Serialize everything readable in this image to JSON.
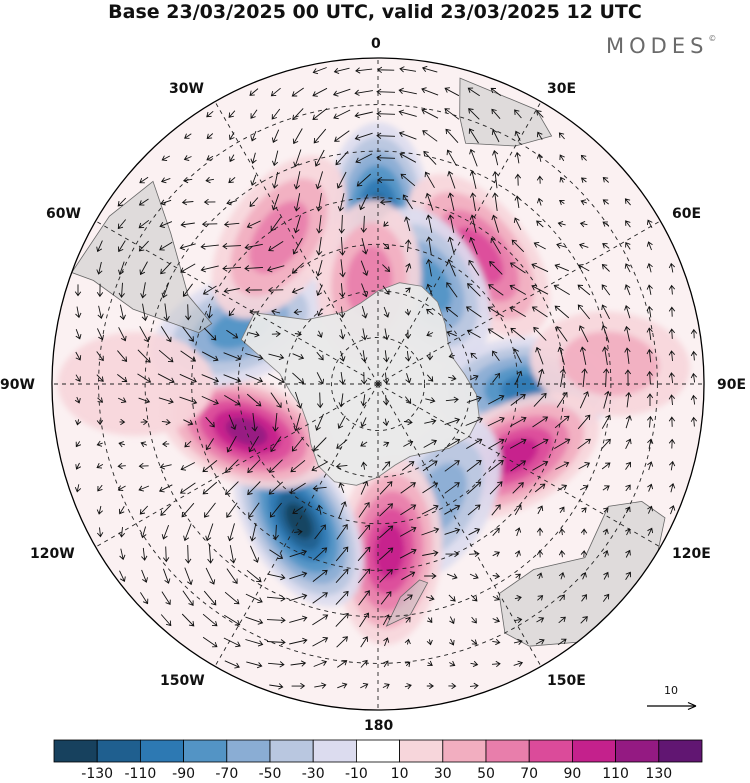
{
  "title": "Base 23/03/2025 00 UTC, valid 23/03/2025 12 UTC",
  "brand": "MODES",
  "brand_mark": "©",
  "longitude_labels": {
    "lon_0": "0",
    "lon_30e": "30E",
    "lon_60e": "60E",
    "lon_90e": "90E",
    "lon_120e": "120E",
    "lon_150e": "150E",
    "lon_180": "180",
    "lon_150w": "150W",
    "lon_120w": "120W",
    "lon_90w": "90W",
    "lon_60w": "60W",
    "lon_30w": "30W"
  },
  "reference_vector": {
    "label": "10",
    "value": 10
  },
  "colorbar": {
    "colors": [
      "#17415e",
      "#1f5f8f",
      "#2d79b3",
      "#5394c5",
      "#8aadd4",
      "#b9c7e0",
      "#dcdcef",
      "#ffffff",
      "#f7d6db",
      "#f2aec0",
      "#e87eab",
      "#db4b9a",
      "#c4218c",
      "#941a82",
      "#611672"
    ],
    "tick_labels": [
      "-130",
      "-110",
      "-90",
      "-70",
      "-50",
      "-30",
      "-10",
      "10",
      "30",
      "50",
      "70",
      "90",
      "110",
      "130"
    ]
  },
  "anomaly_centers": [
    {
      "lon": 0,
      "lat": -54,
      "value": -110
    },
    {
      "lon": 38,
      "lat": -55,
      "value": 85
    },
    {
      "lon": 28,
      "lat": -66,
      "value": -75
    },
    {
      "lon": 92,
      "lat": -58,
      "value": -95
    },
    {
      "lon": 118,
      "lat": -57,
      "value": 90
    },
    {
      "lon": 152,
      "lat": -62,
      "value": -55
    },
    {
      "lon": 176,
      "lat": -54,
      "value": 95
    },
    {
      "lon": -150,
      "lat": -56,
      "value": -130
    },
    {
      "lon": -110,
      "lat": -60,
      "value": 115
    },
    {
      "lon": -68,
      "lat": -58,
      "value": -85
    },
    {
      "lon": -34,
      "lat": -52,
      "value": 65
    },
    {
      "lon": -5,
      "lat": -68,
      "value": 60
    },
    {
      "lon": 85,
      "lat": -40,
      "value": 30
    },
    {
      "lon": -90,
      "lat": -38,
      "value": 25
    }
  ]
}
